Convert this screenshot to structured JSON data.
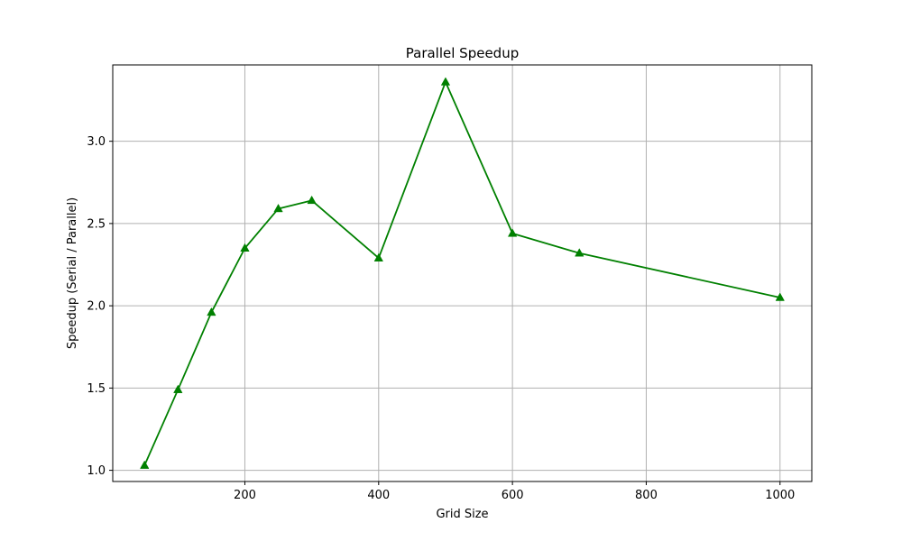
{
  "chart_data": {
    "type": "line",
    "title": "Parallel Speedup",
    "xlabel": "Grid Size",
    "ylabel": "Speedup (Serial / Parallel)",
    "xlim": [
      2.5,
      1047.5
    ],
    "ylim": [
      0.932,
      3.464
    ],
    "x_ticks": [
      200,
      400,
      600,
      800,
      1000
    ],
    "y_ticks": [
      1.0,
      1.5,
      2.0,
      2.5,
      3.0
    ],
    "grid": true,
    "legend": "none",
    "series": [
      {
        "color": "#008000",
        "marker": "triangle-up",
        "x": [
          50,
          100,
          150,
          200,
          250,
          300,
          400,
          500,
          600,
          700,
          1000
        ],
        "y": [
          1.03,
          1.49,
          1.96,
          2.35,
          2.59,
          2.64,
          2.29,
          3.36,
          2.44,
          2.32,
          2.05
        ]
      }
    ]
  }
}
